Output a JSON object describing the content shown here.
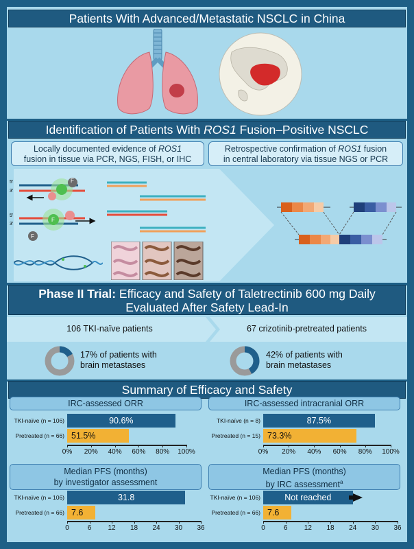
{
  "banner1": "Patients With Advanced/Metastatic NSCLC in China",
  "banner2": {
    "pre": "Identification of Patients With ",
    "gene": "ROS1",
    "post": " Fusion–Positive NSCLC"
  },
  "box_left": {
    "l1_pre": "Locally documented evidence of ",
    "gene": "ROS1",
    "l2": "fusion in tissue via PCR, NGS, FISH, or IHC"
  },
  "box_right": {
    "l1_pre": "Retrospective confirmation of ",
    "gene": "ROS1",
    "l1_post": " fusion",
    "l2": "in central laboratory via tissue NGS or PCR"
  },
  "dna_labels": {
    "five": "5'",
    "three": "3'",
    "f": "F"
  },
  "banner3": {
    "bold": "Phase II Trial:",
    "rest": " Efficacy and Safety of Taletrectinib 600 mg Daily",
    "line2": "Evaluated After Safety Lead-In"
  },
  "cohorts": {
    "left": {
      "label": "106 TKI-naïve patients",
      "pct_line1": "17% of patients with",
      "pct_line2": "brain metastases",
      "value": 17
    },
    "right": {
      "label": "67 crizotinib-pretreated patients",
      "pct_line1": "42% of patients with",
      "pct_line2": "brain metastases",
      "value": 42
    }
  },
  "banner4": "Summary of Efficacy and Safety",
  "colors": {
    "blue": "#1f5f8b",
    "gold": "#f2b134",
    "donut_gray": "#9a9a9a",
    "donut_blue": "#1f5f8b"
  },
  "chart_data": [
    {
      "type": "bar",
      "title": "IRC-assessed ORR",
      "categories": [
        "TKI-naïve (n = 106)",
        "Pretreated (n = 66)"
      ],
      "values": [
        90.6,
        51.5
      ],
      "value_labels": [
        "90.6%",
        "51.5%"
      ],
      "xlim": [
        0,
        100
      ],
      "ticks": [
        "0%",
        "20%",
        "40%",
        "60%",
        "80%",
        "100%"
      ]
    },
    {
      "type": "bar",
      "title": "IRC-assessed intracranial ORR",
      "categories": [
        "TKI-naïve (n = 8)",
        "Pretreated (n = 15)"
      ],
      "values": [
        87.5,
        73.3
      ],
      "value_labels": [
        "87.5%",
        "73.3%"
      ],
      "xlim": [
        0,
        100
      ],
      "ticks": [
        "0%",
        "20%",
        "40%",
        "60%",
        "80%",
        "100%"
      ]
    },
    {
      "type": "bar",
      "title_l1": "Median PFS (months)",
      "title_l2": "by investigator assessment",
      "categories": [
        "TKI-naïve (n = 106)",
        "Pretreated (n = 66)"
      ],
      "values": [
        31.8,
        7.6
      ],
      "value_labels": [
        "31.8",
        "7.6"
      ],
      "xlim": [
        0,
        36
      ],
      "ticks": [
        "0",
        "6",
        "12",
        "18",
        "24",
        "30",
        "36"
      ]
    },
    {
      "type": "bar",
      "title_l1": "Median PFS (months)",
      "title_l2": "by IRC assessment",
      "title_sup": "a",
      "categories": [
        "TKI-naïve (n = 106)",
        "Pretreated (n = 66)"
      ],
      "values": [
        24,
        7.6
      ],
      "value_labels": [
        "Not reached",
        "7.6"
      ],
      "xlim": [
        0,
        36
      ],
      "ticks": [
        "0",
        "6",
        "12",
        "18",
        "24",
        "30",
        "36"
      ]
    }
  ]
}
